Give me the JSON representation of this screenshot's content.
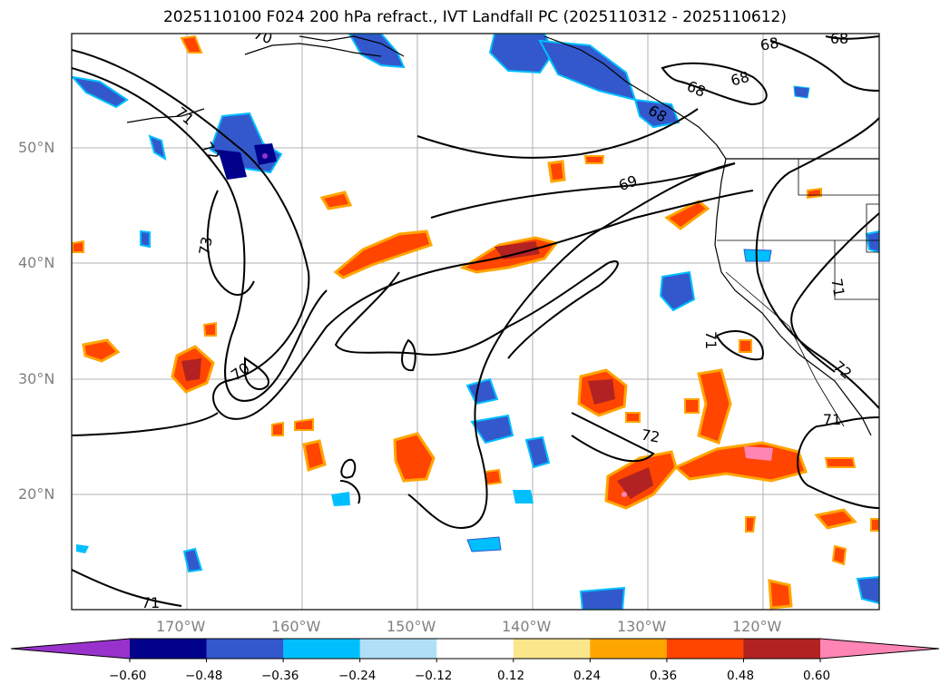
{
  "title": "2025110100 F024 200 hPa refract., IVT Landfall PC (2025110312 - 2025110612)",
  "lat_labels": [
    {
      "text": "50°N",
      "lat": 50
    },
    {
      "text": "40°N",
      "lat": 40
    },
    {
      "text": "30°N",
      "lat": 30
    },
    {
      "text": "20°N",
      "lat": 20
    }
  ],
  "lon_labels": [
    {
      "text": "170°W",
      "lon": -170
    },
    {
      "text": "160°W",
      "lon": -160
    },
    {
      "text": "150°W",
      "lon": -150
    },
    {
      "text": "140°W",
      "lon": -140
    },
    {
      "text": "130°W",
      "lon": -130
    },
    {
      "text": "120°W",
      "lon": -120
    }
  ],
  "extent": {
    "lon_min": -180,
    "lon_max": -110,
    "lat_min": 10,
    "lat_max": 60
  },
  "contour_labels": [
    "70",
    "71",
    "72",
    "73",
    "68",
    "69",
    "68",
    "68",
    "68",
    "71",
    "72",
    "72",
    "71",
    "71",
    "70",
    "71"
  ],
  "colorbar": {
    "ticks": [
      "−0.60",
      "−0.48",
      "−0.36",
      "−0.24",
      "−0.12",
      "0.12",
      "0.24",
      "0.36",
      "0.48",
      "0.60"
    ],
    "colors": [
      "#9932cc",
      "#00008b",
      "#3358cc",
      "#00bfff",
      "#b0e0f8",
      "#ffffff",
      "#fbe68c",
      "#ffa500",
      "#ff4500",
      "#b22222",
      "#ff85b4"
    ]
  }
}
